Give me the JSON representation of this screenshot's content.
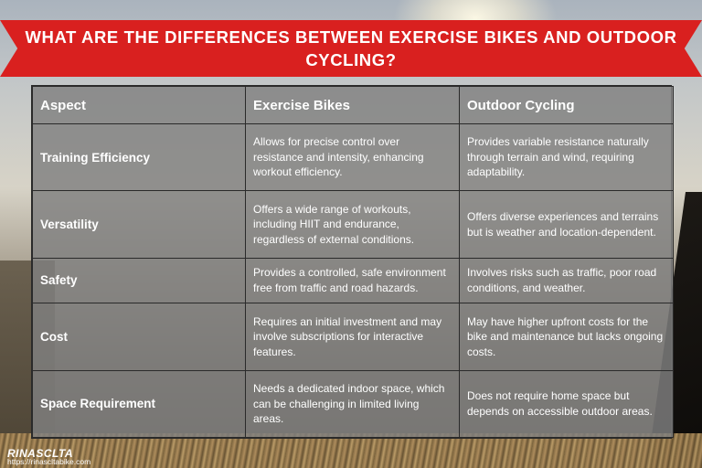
{
  "title": "WHAT ARE THE DIFFERENCES BETWEEN EXERCISE BIKES AND OUTDOOR CYCLING?",
  "table": {
    "headers": [
      "Aspect",
      "Exercise Bikes",
      "Outdoor Cycling"
    ],
    "rows": [
      {
        "aspect": "Training Efficiency",
        "exercise": "Allows for precise control over resistance and intensity, enhancing workout efficiency.",
        "outdoor": "Provides variable resistance naturally through terrain and wind, requiring adaptability."
      },
      {
        "aspect": "Versatility",
        "exercise": "Offers a wide range of workouts, including HIIT and endurance, regardless of external conditions.",
        "outdoor": "Offers diverse experiences and terrains but is weather and location-dependent."
      },
      {
        "aspect": "Safety",
        "exercise": "Provides a controlled, safe environment free from traffic and road hazards.",
        "outdoor": "Involves risks such as traffic, poor road conditions, and weather."
      },
      {
        "aspect": "Cost",
        "exercise": "Requires an initial investment and may involve subscriptions for interactive features.",
        "outdoor": "May have higher upfront costs for the bike and maintenance but lacks ongoing costs."
      },
      {
        "aspect": "Space Requirement",
        "exercise": "Needs a dedicated indoor space, which can be challenging in limited living areas.",
        "outdoor": "Does not require home space but depends on accessible outdoor areas."
      }
    ]
  },
  "logo": {
    "brand": "RINASCLTA",
    "url": "https://rinascltabike.com"
  },
  "colors": {
    "banner": "#d9201f",
    "cell_background": "#808080",
    "text": "#ffffff"
  }
}
